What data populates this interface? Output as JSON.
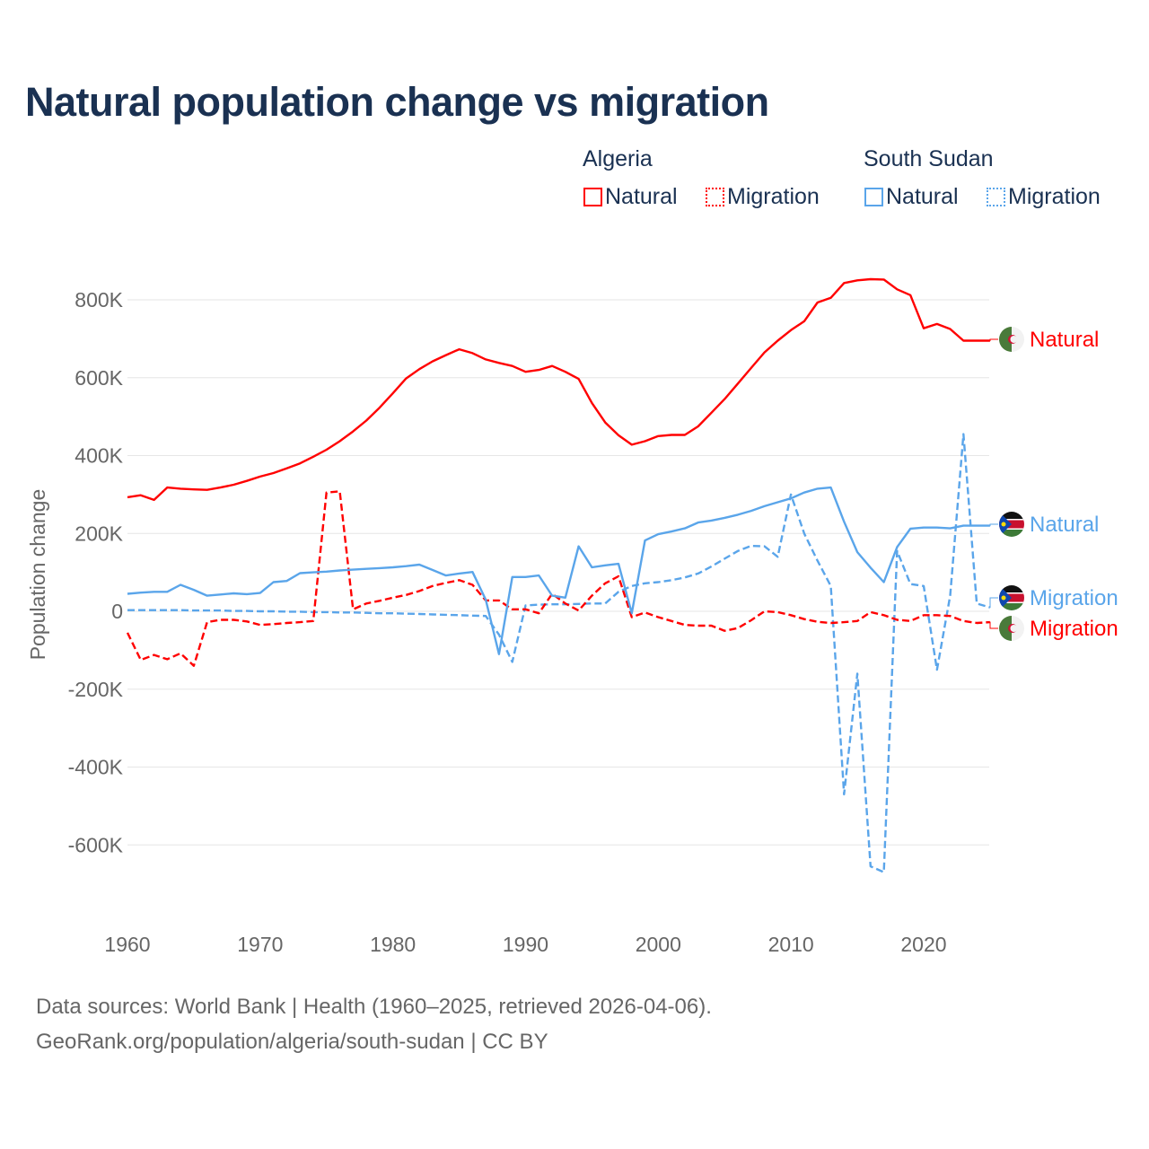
{
  "title": "Natural population change vs migration",
  "legend": {
    "groups": [
      {
        "name": "Algeria",
        "items": [
          "Natural",
          "Migration"
        ],
        "color": "#ff0000"
      },
      {
        "name": "South Sudan",
        "items": [
          "Natural",
          "Migration"
        ],
        "color": "#5aa5ea"
      }
    ]
  },
  "footer": {
    "line1": "Data sources: World Bank | Health (1960–2025, retrieved 2026-04-06).",
    "line2": "GeoRank.org/population/algeria/south-sudan | CC BY"
  },
  "chart_data": {
    "type": "line",
    "title": "Natural population change vs migration",
    "xlabel": "",
    "ylabel": "Population change",
    "xlim": [
      1960,
      2025
    ],
    "ylim": [
      -800000,
      900000
    ],
    "x_ticks": [
      1960,
      1970,
      1980,
      1990,
      2000,
      2010,
      2020
    ],
    "x_tick_labels": [
      "1960",
      "1970",
      "1980",
      "1990",
      "2000",
      "2010",
      "2020"
    ],
    "y_ticks": [
      800000,
      600000,
      400000,
      200000,
      0,
      -200000,
      -400000,
      -600000
    ],
    "y_tick_labels": [
      "800K",
      "600K",
      "400K",
      "200K",
      "0",
      "-200K",
      "-400K",
      "-600K"
    ],
    "grid": true,
    "legend_position": "top-right",
    "x_start": 1960,
    "series": [
      {
        "name": "Algeria Natural",
        "label": "Natural",
        "country": "Algeria",
        "color": "#ff0000",
        "dashed": false,
        "values": [
          293,
          298,
          286,
          318,
          315,
          313,
          312,
          318,
          325,
          335,
          346,
          355,
          367,
          380,
          397,
          415,
          437,
          462,
          490,
          523,
          560,
          598,
          622,
          642,
          658,
          673,
          663,
          647,
          638,
          630,
          615,
          620,
          630,
          615,
          597,
          535,
          485,
          452,
          428,
          437,
          450,
          453,
          453,
          475,
          510,
          545,
          585,
          625,
          665,
          695,
          722,
          745,
          793,
          805,
          843,
          850,
          853,
          852,
          827,
          812,
          727,
          738,
          725,
          695,
          695,
          695
        ]
      },
      {
        "name": "Algeria Migration",
        "label": "Migration",
        "country": "Algeria",
        "color": "#ff0000",
        "dashed": true,
        "values": [
          -55,
          -125,
          -112,
          -123,
          -108,
          -140,
          -28,
          -22,
          -22,
          -26,
          -35,
          -33,
          -30,
          -28,
          -25,
          305,
          308,
          5,
          20,
          27,
          35,
          42,
          52,
          65,
          73,
          80,
          68,
          28,
          28,
          5,
          5,
          -5,
          45,
          20,
          2,
          40,
          72,
          90,
          -15,
          -3,
          -15,
          -25,
          -35,
          -37,
          -37,
          -50,
          -43,
          -23,
          0,
          -2,
          -10,
          -20,
          -27,
          -30,
          -28,
          -25,
          -2,
          -10,
          -22,
          -25,
          -10,
          -10,
          -12,
          -25,
          -30,
          -28
        ]
      },
      {
        "name": "South Sudan Natural",
        "label": "Natural",
        "country": "South Sudan",
        "color": "#5aa5ea",
        "dashed": false,
        "values": [
          45,
          48,
          50,
          50,
          68,
          55,
          40,
          43,
          46,
          44,
          47,
          75,
          78,
          98,
          100,
          102,
          105,
          107,
          109,
          111,
          113,
          116,
          120,
          106,
          92,
          97,
          101,
          30,
          -110,
          88,
          88,
          92,
          40,
          35,
          167,
          113,
          118,
          122,
          -5,
          182,
          198,
          205,
          213,
          228,
          233,
          240,
          248,
          258,
          270,
          280,
          290,
          305,
          315,
          318,
          230,
          152,
          112,
          75,
          165,
          212,
          215,
          215,
          213,
          220,
          220,
          220
        ]
      },
      {
        "name": "South Sudan Migration",
        "label": "Migration",
        "country": "South Sudan",
        "color": "#5aa5ea",
        "dashed": true,
        "values": [
          3,
          3,
          3,
          3,
          3,
          2,
          2,
          2,
          1,
          1,
          0,
          0,
          -1,
          -1,
          -2,
          -2,
          -3,
          -3,
          -4,
          -5,
          -5,
          -6,
          -7,
          -8,
          -9,
          -10,
          -11,
          -12,
          -60,
          -130,
          15,
          17,
          18,
          18,
          19,
          20,
          20,
          50,
          65,
          72,
          75,
          80,
          87,
          97,
          115,
          135,
          155,
          168,
          167,
          140,
          300,
          200,
          130,
          65,
          -470,
          -160,
          -655,
          -670,
          155,
          70,
          65,
          -150,
          40,
          455,
          20,
          10
        ]
      }
    ],
    "value_unit": "thousands"
  }
}
